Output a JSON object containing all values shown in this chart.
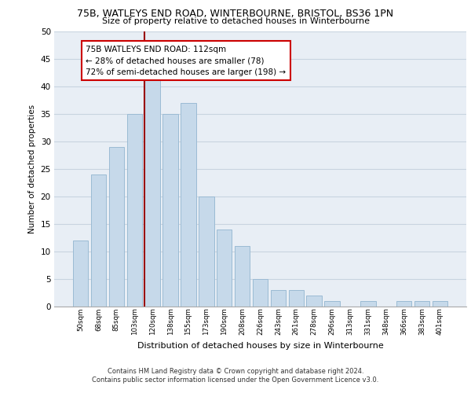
{
  "title1": "75B, WATLEYS END ROAD, WINTERBOURNE, BRISTOL, BS36 1PN",
  "title2": "Size of property relative to detached houses in Winterbourne",
  "xlabel": "Distribution of detached houses by size in Winterbourne",
  "ylabel": "Number of detached properties",
  "bar_labels": [
    "50sqm",
    "68sqm",
    "85sqm",
    "103sqm",
    "120sqm",
    "138sqm",
    "155sqm",
    "173sqm",
    "190sqm",
    "208sqm",
    "226sqm",
    "243sqm",
    "261sqm",
    "278sqm",
    "296sqm",
    "313sqm",
    "331sqm",
    "348sqm",
    "366sqm",
    "383sqm",
    "401sqm"
  ],
  "bar_values": [
    12,
    24,
    29,
    35,
    42,
    35,
    37,
    20,
    14,
    11,
    5,
    3,
    3,
    2,
    1,
    0,
    1,
    0,
    1,
    1,
    1
  ],
  "bar_color": "#c6d9ea",
  "bar_edge_color": "#9bbbd4",
  "grid_color": "#c8d4e0",
  "background_color": "#e8eef5",
  "vline_x": 3.55,
  "vline_color": "#990000",
  "annotation_title": "75B WATLEYS END ROAD: 112sqm",
  "annotation_line1": "← 28% of detached houses are smaller (78)",
  "annotation_line2": "72% of semi-detached houses are larger (198) →",
  "annotation_box_edgecolor": "#cc0000",
  "ylim": [
    0,
    50
  ],
  "yticks": [
    0,
    5,
    10,
    15,
    20,
    25,
    30,
    35,
    40,
    45,
    50
  ],
  "footer1": "Contains HM Land Registry data © Crown copyright and database right 2024.",
  "footer2": "Contains public sector information licensed under the Open Government Licence v3.0."
}
